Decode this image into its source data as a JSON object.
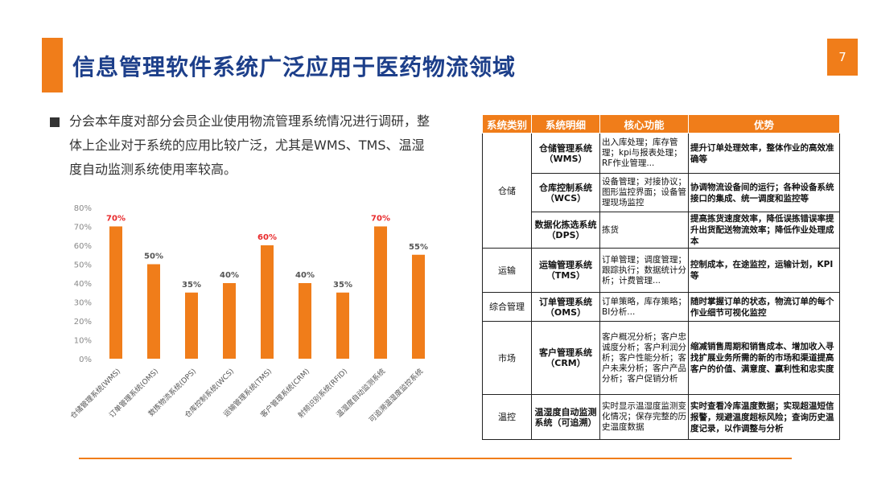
{
  "title": "信息管理软件系统广泛应用于医药物流领域",
  "page_number": "7",
  "intro_text": "分会本年度对部分会员企业使用物流管理系统情况进行调研，整体上企业对于系统的应用比较广泛，尤其是WMS、TMS、温湿度自动监测系统使用率较高。",
  "chart_data": {
    "type": "bar",
    "categories": [
      "仓储管理系统(WMS)",
      "订单管理系统(OMS)",
      "数拣物流系统(DPS)",
      "仓库控制系统(WCS)",
      "运输管理系统(TMS)",
      "客户管理系统(CRM)",
      "射频识别系统(RFID)",
      "温湿度自动监测系统",
      "可追溯温湿度监控系统"
    ],
    "values": [
      70,
      50,
      35,
      40,
      60,
      40,
      35,
      70,
      55
    ],
    "value_labels": [
      "70%",
      "50%",
      "35%",
      "40%",
      "60%",
      "40%",
      "35%",
      "70%",
      "55%"
    ],
    "highlight": [
      true,
      false,
      false,
      false,
      true,
      false,
      false,
      true,
      false
    ],
    "ylim": [
      0,
      80
    ],
    "yticks": [
      "0%",
      "10%",
      "20%",
      "30%",
      "40%",
      "50%",
      "60%",
      "70%",
      "80%"
    ],
    "bar_color": "#f07d1a",
    "highlight_label_color": "#e8292b",
    "label_color": "#555555"
  },
  "table": {
    "headers": [
      "系统类别",
      "系统明细",
      "核心功能",
      "优势"
    ],
    "rows": [
      {
        "category": "仓储",
        "name": "仓储管理系统（WMS）",
        "core": "出入库处理；库存管理；kpi与报表处理；RF作业管理...",
        "adv": "提升订单处理效率，整体作业的高效准确等"
      },
      {
        "category": "",
        "name": "仓库控制系统（WCS）",
        "core": "设备管理；对接协议；图形监控界面；设备管理现场监控",
        "adv": "协调物流设备间的运行；各种设备系统接口的集成、统一调度和监控等"
      },
      {
        "category": "",
        "name": "数据化拣选系统（DPS）",
        "core": "拣货",
        "adv": "提高拣货速度效率，降低误拣错误率提升出货配送物流效率；降低作业处理成本"
      },
      {
        "category": "运输",
        "name": "运输管理系统（TMS）",
        "core": "订单管理；调度管理；跟踪执行；数据统计分析；计费管理...",
        "adv": "控制成本，在途监控，运输计划，KPI等"
      },
      {
        "category": "综合管理",
        "name": "订单管理系统（OMS）",
        "core": "订单策略，库存策略；BI分析...",
        "adv": "随时掌握订单的状态，物流订单的每个作业细节可视化监控"
      },
      {
        "category": "市场",
        "name": "客户管理系统（CRM）",
        "core": "客户概况分析；客户忠诚度分析；客户利润分析；客户性能分析；客户未来分析；客户产品分析；客户促销分析",
        "adv": "缩减销售周期和销售成本、增加收入寻找扩展业务所需的新的市场和渠道提高客户的价值、满意度、赢利性和忠实度"
      },
      {
        "category": "温控",
        "name": "温湿度自动监测系统（可追溯）",
        "core": "实时显示温湿度监测变化情况；保存完整的历史温度数据",
        "adv": "实时查看冷库温度数据；实现超温短信报警，规避温度超标风险；查询历史温度记录，以作调整与分析"
      }
    ]
  }
}
